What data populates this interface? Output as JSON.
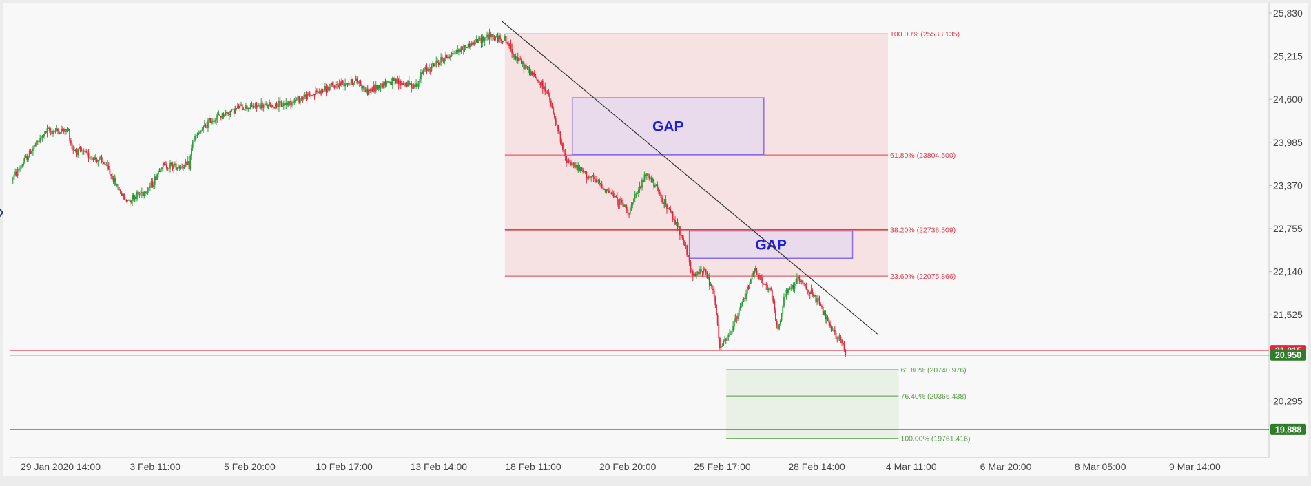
{
  "chart_data": {
    "type": "candlestick",
    "title": "",
    "xlabel": "",
    "ylabel": "",
    "ylim": [
      19650,
      25900
    ],
    "y_ticks": [
      "25,830",
      "25,215",
      "24,600",
      "23,985",
      "23,370",
      "22,755",
      "22,140",
      "21,525",
      "20,295"
    ],
    "x_ticks": [
      "29 Jan 2020 14:00",
      "3 Feb 11:00",
      "5 Feb 20:00",
      "10 Feb 17:00",
      "13 Feb 14:00",
      "18 Feb 11:00",
      "20 Feb 20:00",
      "25 Feb 17:00",
      "28 Feb 14:00",
      "4 Mar 11:00",
      "6 Mar 20:00",
      "8 Mar 05:00",
      "9 Mar 14:00"
    ],
    "grid": false,
    "colors": {
      "up": "#2e9e3a",
      "down": "#e0283c",
      "fib_red": "#e23b4c",
      "fib_red_zone": "#f5dcdd",
      "fib_green": "#5a9a4a",
      "fib_green_zone": "#e6efe2",
      "gap_fill": "#e6d9ec",
      "gap_border": "#8a6ee6",
      "gap_text": "#1f1fd6",
      "trendline": "#333333",
      "badge_red": "#e0283c",
      "badge_green": "#2f7d2a"
    },
    "price_path": [
      [
        0,
        23450
      ],
      [
        3,
        23900
      ],
      [
        5,
        24150
      ],
      [
        8,
        24150
      ],
      [
        8.5,
        23900
      ],
      [
        13,
        23700
      ],
      [
        16,
        23150
      ],
      [
        19,
        23300
      ],
      [
        20,
        23420
      ],
      [
        21,
        23650
      ],
      [
        25,
        23650
      ],
      [
        25.5,
        24000
      ],
      [
        28,
        24300
      ],
      [
        32,
        24480
      ],
      [
        38,
        24520
      ],
      [
        44,
        24730
      ],
      [
        47,
        24850
      ],
      [
        49,
        24850
      ],
      [
        50,
        24700
      ],
      [
        51,
        24750
      ],
      [
        53,
        24850
      ],
      [
        57,
        24800
      ],
      [
        58,
        25000
      ],
      [
        62,
        25250
      ],
      [
        65,
        25400
      ],
      [
        67,
        25500
      ],
      [
        69.5,
        25450
      ],
      [
        71,
        25200
      ],
      [
        73,
        25000
      ],
      [
        75.5,
        24700
      ],
      [
        78,
        23750
      ],
      [
        82,
        23450
      ],
      [
        84,
        23300
      ],
      [
        87,
        23000
      ],
      [
        89.5,
        23550
      ],
      [
        93,
        22950
      ],
      [
        94.5,
        22650
      ],
      [
        96,
        22050
      ],
      [
        97.5,
        22200
      ],
      [
        99,
        21800
      ],
      [
        99.8,
        21050
      ],
      [
        101,
        21200
      ],
      [
        103,
        21700
      ],
      [
        104.5,
        22150
      ],
      [
        107,
        21850
      ],
      [
        108,
        21300
      ],
      [
        109,
        21800
      ],
      [
        111,
        22050
      ],
      [
        114,
        21650
      ],
      [
        115.5,
        21300
      ],
      [
        117,
        21150
      ],
      [
        117.5,
        20950
      ]
    ],
    "trendline": {
      "x1": 69,
      "y1": 25720,
      "x2": 122,
      "y2": 21250
    },
    "horizontal_lines": [
      {
        "y": 21015,
        "color": "#e23b4c"
      },
      {
        "y": 20950,
        "color": "#8b2a30"
      },
      {
        "y": 19888,
        "color": "#2f6d25"
      }
    ],
    "fib_red": {
      "x_from": 69.5,
      "x_to": 123.5,
      "levels": [
        {
          "y": 25533.135,
          "label": "100.00% (25533.135)"
        },
        {
          "y": 23804.5,
          "label": "61.80% (23804.500)"
        },
        {
          "y": 22738.509,
          "label": "38.20% (22738.509)"
        },
        {
          "y": 22075.866,
          "label": "23.60% (22075.866)"
        }
      ]
    },
    "fib_green": {
      "x_from": 100.7,
      "x_to": 125,
      "levels": [
        {
          "y": 20740.976,
          "label": "61.80% (20740.976)"
        },
        {
          "y": 20366.438,
          "label": "76.40% (20366.438)"
        },
        {
          "y": 19761.416,
          "label": "100.00% (19761.416)"
        }
      ]
    },
    "gaps": [
      {
        "x1": 79,
        "x2": 106,
        "y_top": 24620,
        "y_bottom": 23810,
        "label": "GAP"
      },
      {
        "x1": 95.5,
        "x2": 118.5,
        "y_top": 22720,
        "y_bottom": 22330,
        "label": "GAP"
      }
    ],
    "price_badges": [
      {
        "y": 21015,
        "label": "21,015",
        "color": "#e0283c"
      },
      {
        "y": 20950,
        "label": "20,950",
        "color": "#2f7d2a"
      },
      {
        "y": 19888,
        "label": "19,888",
        "color": "#2f7d2a"
      }
    ]
  }
}
